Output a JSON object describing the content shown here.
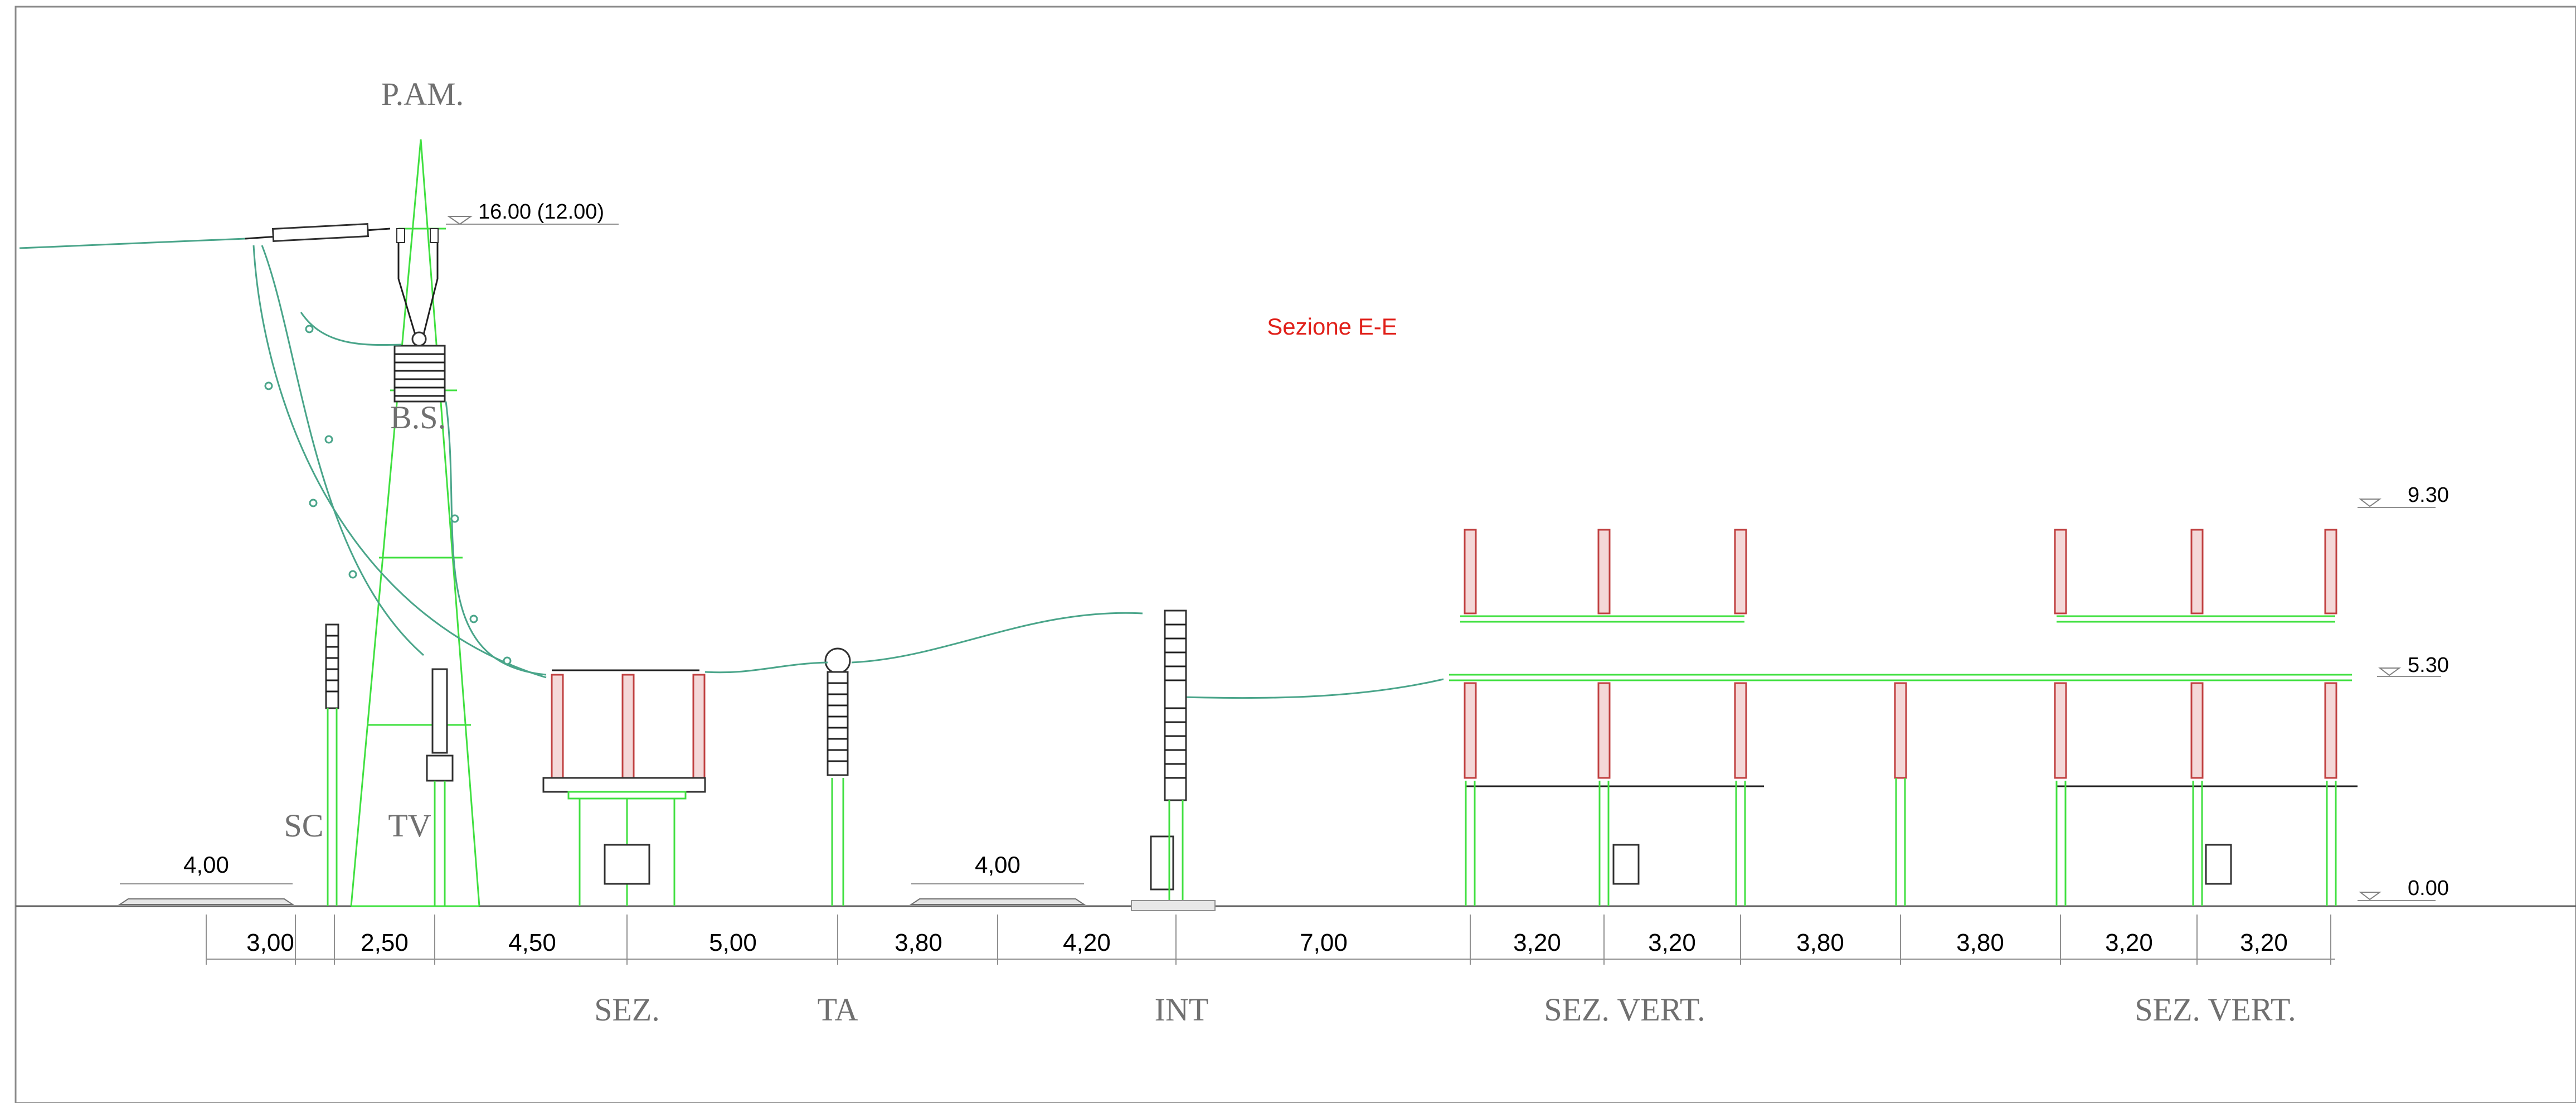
{
  "title": "Sezione E-E",
  "colors": {
    "title": "#e0201a",
    "steel": "#40e040",
    "insulator": "#c04040",
    "cable": "#4aa58a",
    "dimension": "#909090"
  },
  "levels": [
    {
      "id": "top",
      "text": "16.00 (12.00)"
    },
    {
      "id": "a",
      "text": "9.30"
    },
    {
      "id": "b",
      "text": "5.30"
    },
    {
      "id": "c",
      "text": "0.00"
    }
  ],
  "equipment": {
    "pam": "P.AM.",
    "bs": "B.S.",
    "sc": "SC",
    "tv": "TV",
    "sez": "SEZ.",
    "ta": "TA",
    "int": "INT",
    "sezvert1": "SEZ. VERT.",
    "sezvert2": "SEZ. VERT."
  },
  "road_widths": [
    "4,00",
    "4,00"
  ],
  "spacings": [
    "3,00",
    "2,50",
    "4,50",
    "5,00",
    "3,80",
    "4,20",
    "7,00",
    "3,20",
    "3,20",
    "3,80",
    "3,80",
    "3,20",
    "3,20"
  ]
}
